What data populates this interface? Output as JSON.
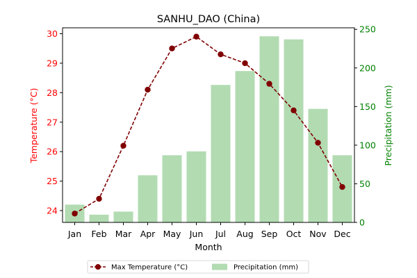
{
  "chart_data": {
    "type": "bar+line",
    "title": "SANHU_DAO (China)",
    "xlabel": "Month",
    "ylabel_left": "Temperature (°C)",
    "ylabel_right": "Precipitation (mm)",
    "categories": [
      "Jan",
      "Feb",
      "Mar",
      "Apr",
      "May",
      "Jun",
      "Jul",
      "Aug",
      "Sep",
      "Oct",
      "Nov",
      "Dec"
    ],
    "ylim_left": [
      23.6,
      30.2
    ],
    "ylim_right": [
      0,
      252
    ],
    "yticks_left": [
      24,
      25,
      26,
      27,
      28,
      29,
      30
    ],
    "yticks_right": [
      0,
      50,
      100,
      150,
      200,
      250
    ],
    "series": [
      {
        "name": "Max Temperature (°C)",
        "kind": "line",
        "axis": "left",
        "color": "#800000",
        "values": [
          23.9,
          24.4,
          26.2,
          28.1,
          29.5,
          29.9,
          29.3,
          29.0,
          28.3,
          27.4,
          26.3,
          24.8
        ]
      },
      {
        "name": "Precipitation (mm)",
        "kind": "bar",
        "axis": "right",
        "color": "#b2dbb2",
        "values": [
          23,
          10,
          14,
          61,
          87,
          92,
          178,
          196,
          241,
          237,
          147,
          87
        ]
      }
    ],
    "colors": {
      "left_axis": "#ff0000",
      "right_axis": "#008000"
    },
    "legend": {
      "placement": "bottom-center",
      "columns": 2
    },
    "grid": false
  }
}
